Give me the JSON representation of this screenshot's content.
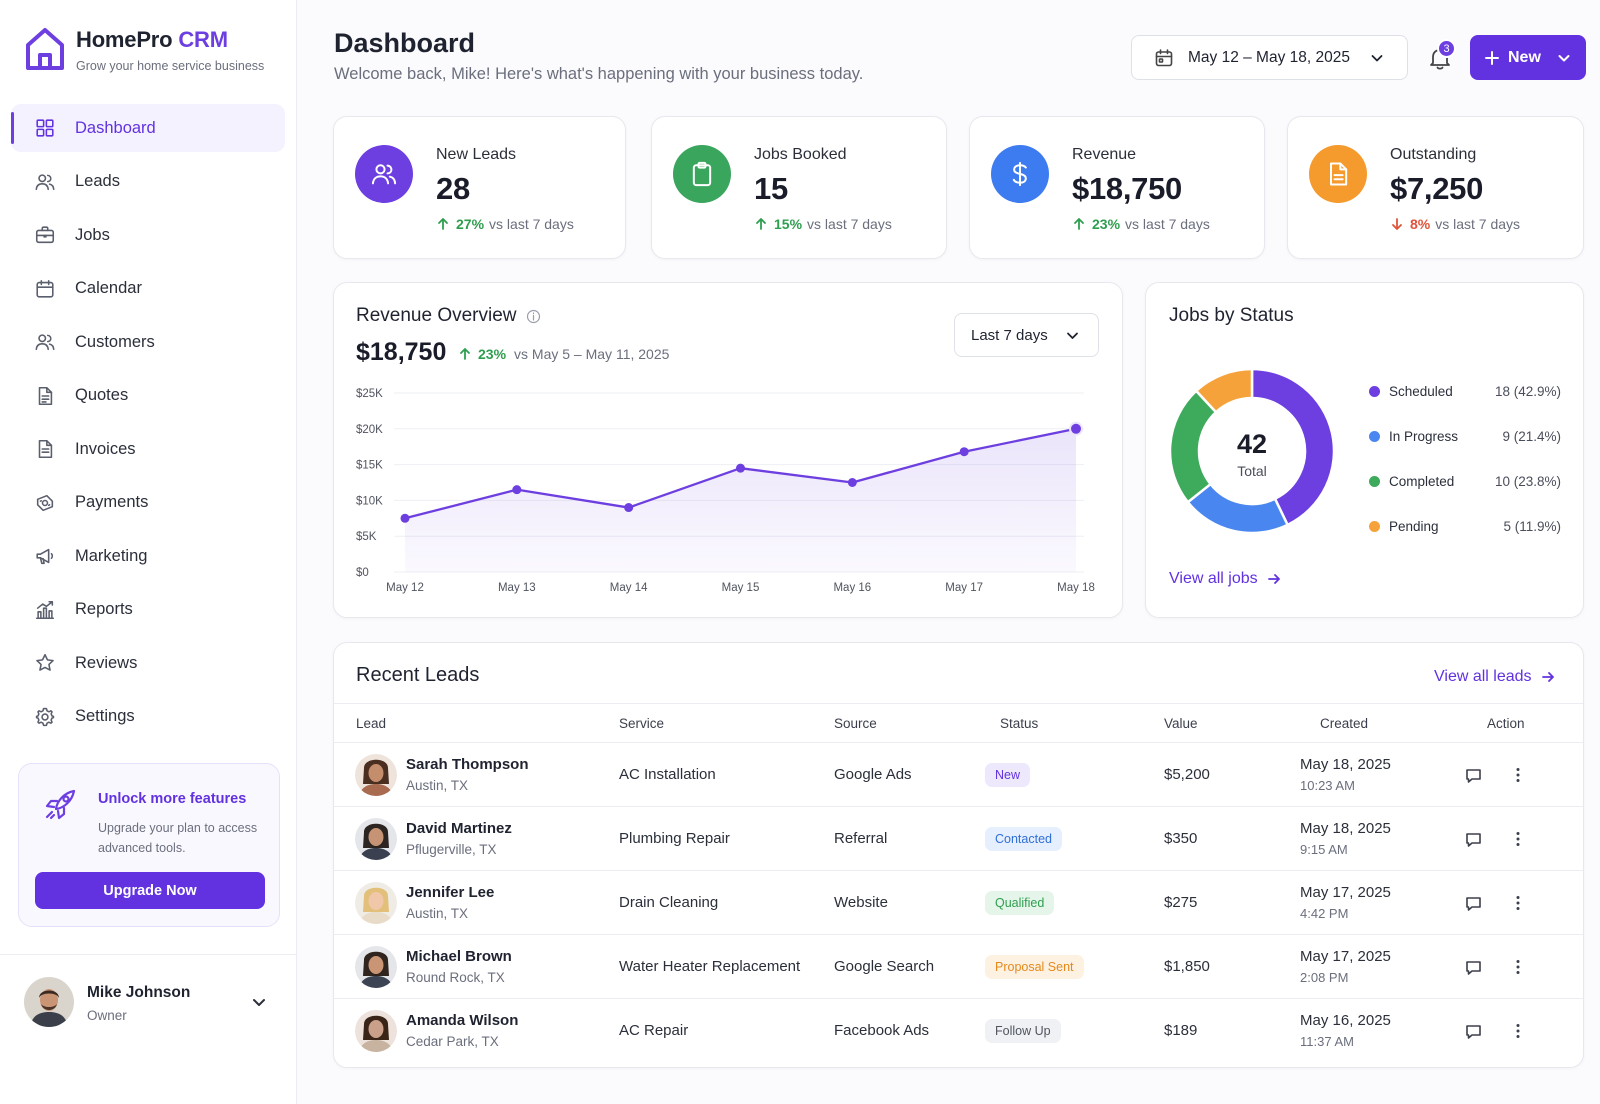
{
  "brand": {
    "name_main": "HomePro",
    "name_accent": "CRM",
    "tagline": "Grow your home service business"
  },
  "nav": [
    {
      "label": "Dashboard",
      "icon": "grid-icon",
      "active": true
    },
    {
      "label": "Leads",
      "icon": "users-icon"
    },
    {
      "label": "Jobs",
      "icon": "briefcase-icon"
    },
    {
      "label": "Calendar",
      "icon": "calendar-icon"
    },
    {
      "label": "Customers",
      "icon": "customers-icon"
    },
    {
      "label": "Quotes",
      "icon": "quote-document-icon"
    },
    {
      "label": "Invoices",
      "icon": "invoice-document-icon"
    },
    {
      "label": "Payments",
      "icon": "payments-icon"
    },
    {
      "label": "Marketing",
      "icon": "megaphone-icon"
    },
    {
      "label": "Reports",
      "icon": "bar-chart-icon"
    },
    {
      "label": "Reviews",
      "icon": "star-icon"
    },
    {
      "label": "Settings",
      "icon": "gear-icon"
    }
  ],
  "upgrade": {
    "title": "Unlock more features",
    "description": "Upgrade your plan to access advanced tools.",
    "button": "Upgrade Now"
  },
  "user": {
    "name": "Mike Johnson",
    "role": "Owner"
  },
  "header": {
    "title": "Dashboard",
    "subtitle": "Welcome back, Mike! Here's what's happening with your business today.",
    "date_range": "May 12 – May 18, 2025",
    "notification_count": "3",
    "new_button": "New"
  },
  "stats": [
    {
      "label": "New Leads",
      "value": "28",
      "change": "27%",
      "direction": "up",
      "period": "vs last 7 days",
      "color": "#6d3fe0",
      "icon": "users-icon"
    },
    {
      "label": "Jobs Booked",
      "value": "15",
      "change": "15%",
      "direction": "up",
      "period": "vs last 7 days",
      "color": "#3aa55d",
      "icon": "clipboard-icon"
    },
    {
      "label": "Revenue",
      "value": "$18,750",
      "change": "23%",
      "direction": "up",
      "period": "vs last 7 days",
      "color": "#3d7bf0",
      "icon": "dollar-icon"
    },
    {
      "label": "Outstanding",
      "value": "$7,250",
      "change": "8%",
      "direction": "down",
      "period": "vs last 7 days",
      "color": "#f59a2c",
      "icon": "document-icon"
    }
  ],
  "revenue_overview": {
    "title": "Revenue Overview",
    "total": "$18,750",
    "change": "23%",
    "comparison": "vs May 5 – May 11, 2025",
    "range_select": "Last 7 days"
  },
  "chart_data": {
    "type": "area",
    "categories": [
      "May 12",
      "May 13",
      "May 14",
      "May 15",
      "May 16",
      "May 17",
      "May 18"
    ],
    "series": [
      {
        "values": [
          7500,
          11500,
          9000,
          14500,
          12500,
          16800,
          20000
        ]
      }
    ],
    "ylim": [
      0,
      25000
    ],
    "yticks": [
      "$0",
      "$5K",
      "$10K",
      "$15K",
      "$20K",
      "$25K"
    ],
    "ytick_values": [
      0,
      5000,
      10000,
      15000,
      20000,
      25000
    ],
    "grid": true,
    "color": "#6d3fe0"
  },
  "jobs_by_status": {
    "title": "Jobs by Status",
    "total": "42",
    "total_label": "Total",
    "items": [
      {
        "label": "Scheduled",
        "count": 18,
        "display": "18 (42.9%)",
        "color": "#6d3fe0"
      },
      {
        "label": "In Progress",
        "count": 9,
        "display": "9 (21.4%)",
        "color": "#4a86f0"
      },
      {
        "label": "Completed",
        "count": 10,
        "display": "10 (23.8%)",
        "color": "#3daa5c"
      },
      {
        "label": "Pending",
        "count": 5,
        "display": "5 (11.9%)",
        "color": "#f5a23a"
      }
    ],
    "view_all": "View all jobs"
  },
  "recent_leads": {
    "title": "Recent Leads",
    "view_all": "View all leads",
    "columns": [
      "Lead",
      "Service",
      "Source",
      "Status",
      "Value",
      "Created",
      "Action"
    ],
    "rows": [
      {
        "name": "Sarah Thompson",
        "location": "Austin, TX",
        "service": "AC Installation",
        "source": "Google Ads",
        "status": "New",
        "status_bg": "#eee8fd",
        "status_fg": "#6232e0",
        "value": "$5,200",
        "date": "May 18, 2025",
        "time": "10:23 AM"
      },
      {
        "name": "David Martinez",
        "location": "Pflugerville, TX",
        "service": "Plumbing Repair",
        "source": "Referral",
        "status": "Contacted",
        "status_bg": "#e6effd",
        "status_fg": "#2f6fd8",
        "value": "$350",
        "date": "May 18, 2025",
        "time": "9:15 AM"
      },
      {
        "name": "Jennifer Lee",
        "location": "Austin, TX",
        "service": "Drain Cleaning",
        "source": "Website",
        "status": "Qualified",
        "status_bg": "#e5f5ea",
        "status_fg": "#2f9e4f",
        "value": "$275",
        "date": "May 17, 2025",
        "time": "4:42 PM"
      },
      {
        "name": "Michael Brown",
        "location": "Round Rock, TX",
        "service": "Water Heater Replacement",
        "source": "Google Search",
        "status": "Proposal Sent",
        "status_bg": "#fdf1e2",
        "status_fg": "#e48a1c",
        "value": "$1,850",
        "date": "May 17, 2025",
        "time": "2:08 PM"
      },
      {
        "name": "Amanda Wilson",
        "location": "Cedar Park, TX",
        "service": "AC Repair",
        "source": "Facebook Ads",
        "status": "Follow Up",
        "status_bg": "#f0f1f4",
        "status_fg": "#50545f",
        "value": "$189",
        "date": "May 16, 2025",
        "time": "11:37 AM"
      }
    ]
  }
}
